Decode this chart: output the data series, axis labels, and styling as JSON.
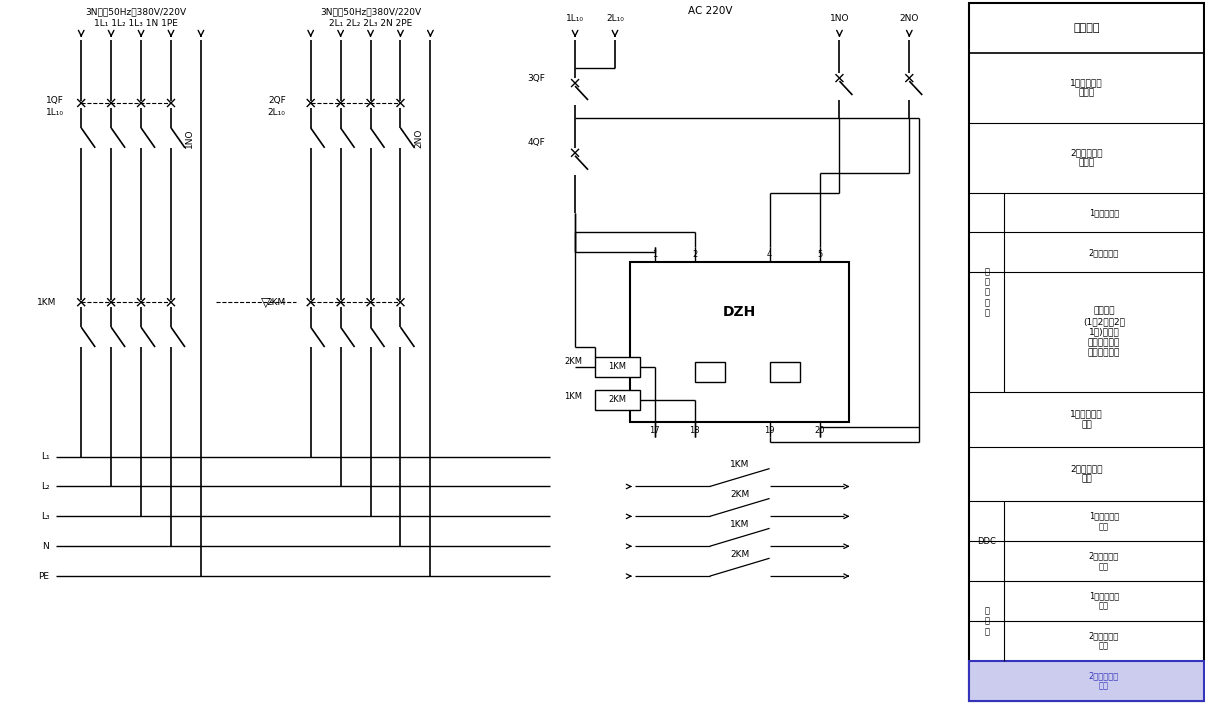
{
  "bg_color": "#ffffff",
  "figsize": [
    12.06,
    7.12
  ],
  "dpi": 100,
  "title1": "3N、～50Hz、380V/220V",
  "title1b": "1L₁ 1L₂ 1L₃ 1N 1PE",
  "title2": "3N、～50Hz、380V/220V",
  "title2b": "2L₁ 2L₂ 2L₃ 2N 2PE",
  "title3": "AC 220V",
  "table_title": "控制电源",
  "row0": "1号电源控制\n断路器",
  "row1": "2号电源控制\n断路器",
  "row2": "1号电源采样",
  "row3": "2号电源采样",
  "row4": "工况设定\n(1用2备、2用\n1备)自投手\n复、自复电源\n提示运行指示",
  "row5": "1号电源运行\n回路",
  "row6": "2号电源运行\n回路",
  "row7": "1号电源运行\n反馈",
  "row8": "2号电源运行\n反馈",
  "row9": "1号电源运行\n反馈",
  "row10": "2号电源运行\n反馈",
  "label_elec_box": "电\n源\n转\n换\n盒",
  "label_ddc": "DDC",
  "label_control": "控\n制\n盒",
  "label_1NO": "1NO",
  "label_2NO": "2NO",
  "label_1QF": "1QF",
  "label_1L10": "1L₁₀",
  "label_2QF": "2QF",
  "label_2L10": "2L₁₀",
  "label_3QF": "3QF",
  "label_4QF": "4QF",
  "label_1KM": "1KM",
  "label_2KM": "2KM",
  "label_DZH": "DZH",
  "label_L1": "L₁",
  "label_L2": "L₂",
  "label_L3": "L₃",
  "label_N": "N",
  "label_PE": "PE",
  "label_tri": "▽",
  "label_1l10top": "1L₁₀",
  "label_2l10top": "2L₁₀"
}
